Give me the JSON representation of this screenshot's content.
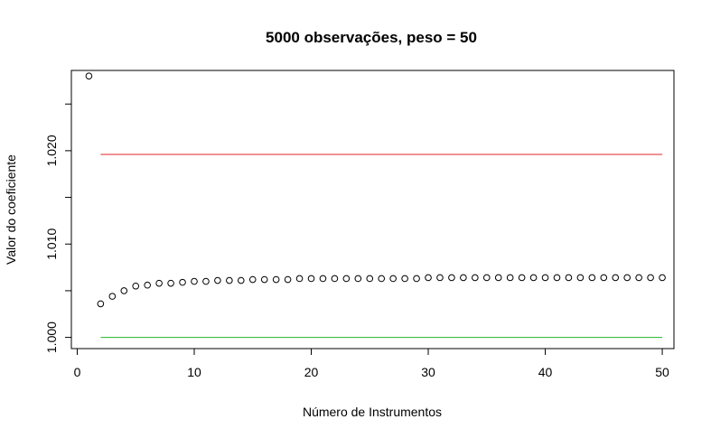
{
  "chart_data": {
    "type": "scatter",
    "title": "5000 observações, peso = 50",
    "xlabel": "Número de Instrumentos",
    "ylabel": "Valor do coeficiente",
    "xlim": [
      -0.5,
      51.0
    ],
    "ylim": [
      0.9988,
      1.0286
    ],
    "x_ticks": [
      0,
      10,
      20,
      30,
      40,
      50
    ],
    "x_tick_labels": [
      "0",
      "10",
      "20",
      "30",
      "40",
      "50"
    ],
    "y_ticks": [
      1.0,
      1.005,
      1.01,
      1.015,
      1.02,
      1.025
    ],
    "y_tick_labels": [
      "1.000",
      "",
      "1.010",
      "",
      "1.020",
      ""
    ],
    "grid": false,
    "series": [
      {
        "marker": "open-circle",
        "color": "#000000",
        "x": [
          1,
          2,
          3,
          4,
          5,
          6,
          7,
          8,
          9,
          10,
          11,
          12,
          13,
          14,
          15,
          16,
          17,
          18,
          19,
          20,
          21,
          22,
          23,
          24,
          25,
          26,
          27,
          28,
          29,
          30,
          31,
          32,
          33,
          34,
          35,
          36,
          37,
          38,
          39,
          40,
          41,
          42,
          43,
          44,
          45,
          46,
          47,
          48,
          49,
          50
        ],
        "y": [
          1.028,
          1.0036,
          1.0044,
          1.005,
          1.0055,
          1.0056,
          1.0058,
          1.0058,
          1.0059,
          1.006,
          1.006,
          1.0061,
          1.0061,
          1.0061,
          1.0062,
          1.0062,
          1.0062,
          1.0062,
          1.0063,
          1.0063,
          1.0063,
          1.0063,
          1.0063,
          1.0063,
          1.0063,
          1.0063,
          1.0063,
          1.0063,
          1.0063,
          1.0064,
          1.0064,
          1.0064,
          1.0064,
          1.0064,
          1.0064,
          1.0064,
          1.0064,
          1.0064,
          1.0064,
          1.0064,
          1.0064,
          1.0064,
          1.0064,
          1.0064,
          1.0064,
          1.0064,
          1.0064,
          1.0064,
          1.0064,
          1.0064
        ]
      }
    ],
    "hlines": [
      {
        "y": 1.0196,
        "x_from": 2,
        "x_to": 50,
        "color": "#e0202a"
      },
      {
        "y": 1.0,
        "x_from": 2,
        "x_to": 50,
        "color": "#22b422"
      }
    ]
  }
}
